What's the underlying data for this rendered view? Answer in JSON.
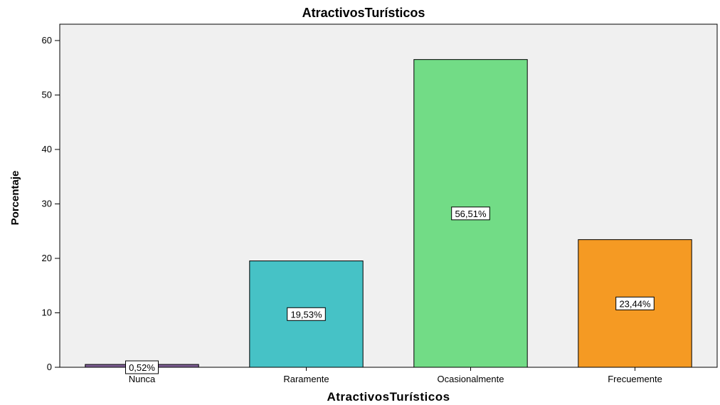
{
  "chart_data": {
    "type": "bar",
    "title": "AtractivosTurísticos",
    "xlabel": "AtractivosTurísticos",
    "ylabel": "Porcentaje",
    "categories": [
      "Nunca",
      "Raramente",
      "Ocasionalmente",
      "Frecuemente"
    ],
    "values": [
      0.52,
      19.53,
      56.51,
      23.44
    ],
    "data_labels": [
      "0,52%",
      "19,53%",
      "56,51%",
      "23,44%"
    ],
    "colors": [
      "#7f5f95",
      "#46c2c6",
      "#72dc86",
      "#f59a23"
    ],
    "ylim": [
      0,
      63
    ],
    "yticks": [
      0,
      10,
      20,
      30,
      40,
      50,
      60
    ],
    "grid": false,
    "plot_background": "#f0f0f0"
  }
}
